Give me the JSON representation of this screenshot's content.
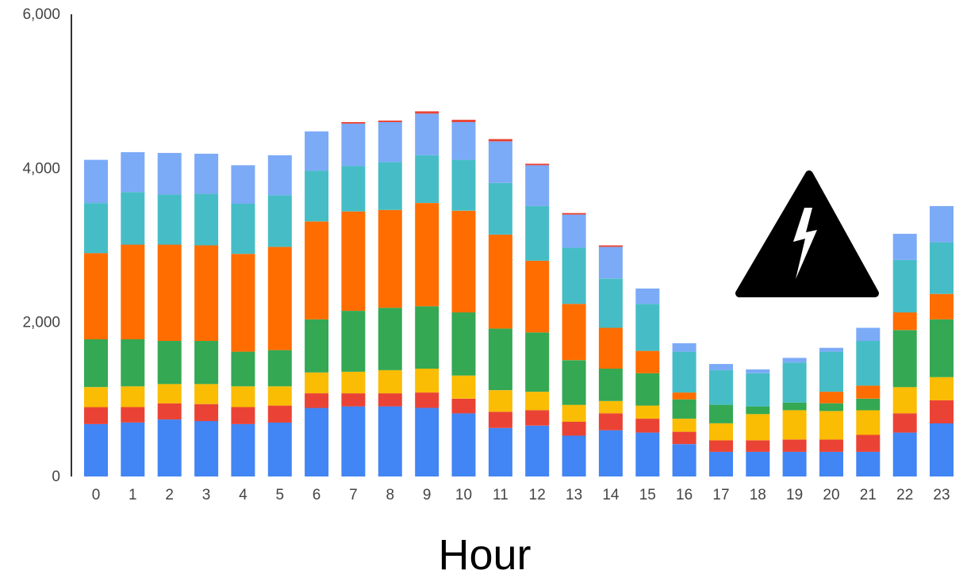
{
  "chart_data": {
    "type": "bar",
    "stacked": true,
    "xlabel": "Hour",
    "ylabel": "",
    "ylim": [
      0,
      6000
    ],
    "yticks": [
      0,
      2000,
      4000,
      6000
    ],
    "ytick_labels": [
      "0",
      "2,000",
      "4,000",
      "6,000"
    ],
    "grid": false,
    "legend": "none",
    "categories": [
      "0",
      "1",
      "2",
      "3",
      "4",
      "5",
      "6",
      "7",
      "8",
      "9",
      "10",
      "11",
      "12",
      "13",
      "14",
      "15",
      "16",
      "17",
      "18",
      "19",
      "20",
      "21",
      "22",
      "23"
    ],
    "series": [
      {
        "color": "#4285f4",
        "values": [
          680,
          700,
          740,
          720,
          680,
          700,
          890,
          910,
          910,
          890,
          820,
          630,
          660,
          530,
          600,
          570,
          420,
          320,
          320,
          320,
          320,
          320,
          570,
          690
        ]
      },
      {
        "color": "#ea4335",
        "values": [
          220,
          200,
          210,
          220,
          220,
          220,
          190,
          170,
          170,
          200,
          190,
          210,
          200,
          180,
          220,
          180,
          160,
          150,
          150,
          160,
          160,
          220,
          250,
          300
        ]
      },
      {
        "color": "#fbbc04",
        "values": [
          260,
          270,
          250,
          260,
          270,
          250,
          270,
          280,
          300,
          310,
          300,
          280,
          240,
          220,
          160,
          170,
          170,
          220,
          340,
          380,
          370,
          320,
          340,
          300
        ]
      },
      {
        "color": "#34a853",
        "values": [
          620,
          610,
          560,
          560,
          450,
          470,
          690,
          790,
          810,
          810,
          820,
          800,
          770,
          580,
          420,
          420,
          250,
          240,
          100,
          100,
          100,
          150,
          740,
          750
        ]
      },
      {
        "color": "#ff6d01",
        "values": [
          1120,
          1230,
          1250,
          1240,
          1270,
          1340,
          1270,
          1290,
          1270,
          1340,
          1320,
          1220,
          930,
          730,
          530,
          290,
          90,
          0,
          0,
          0,
          150,
          170,
          230,
          330
        ]
      },
      {
        "color": "#46bdc6",
        "values": [
          650,
          680,
          650,
          670,
          650,
          670,
          660,
          590,
          620,
          620,
          660,
          670,
          710,
          730,
          640,
          610,
          530,
          450,
          430,
          520,
          520,
          580,
          680,
          670
        ]
      },
      {
        "color": "#7baaf7",
        "values": [
          560,
          520,
          540,
          520,
          500,
          520,
          510,
          550,
          520,
          540,
          490,
          540,
          530,
          430,
          410,
          200,
          110,
          80,
          50,
          60,
          50,
          170,
          340,
          470
        ]
      },
      {
        "color": "#ea4335",
        "values": [
          0,
          0,
          0,
          0,
          0,
          0,
          0,
          20,
          20,
          30,
          30,
          30,
          20,
          20,
          20,
          0,
          0,
          0,
          0,
          0,
          0,
          0,
          0,
          0
        ]
      }
    ]
  },
  "icon": {
    "name": "high-voltage-warning-icon"
  }
}
